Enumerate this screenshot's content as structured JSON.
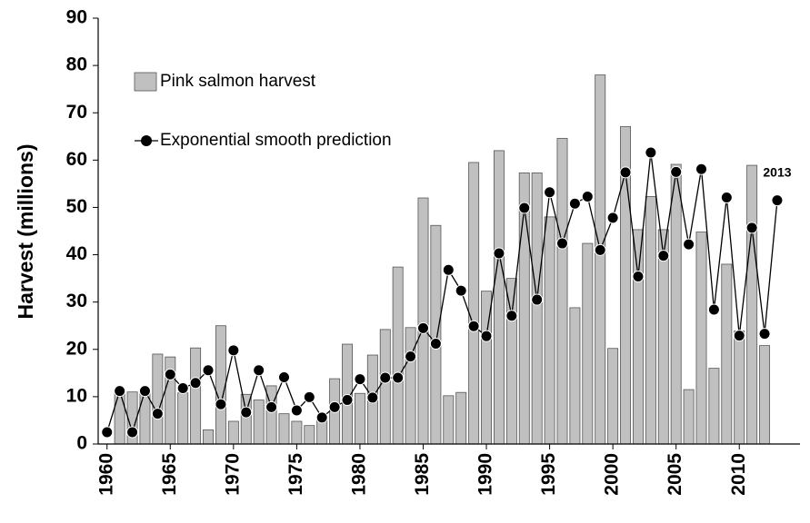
{
  "chart_data": {
    "type": "bar-line",
    "y_label": "Harvest (millions)",
    "annotation": "2013",
    "x": [
      1960,
      1961,
      1962,
      1963,
      1964,
      1965,
      1966,
      1967,
      1968,
      1969,
      1970,
      1971,
      1972,
      1973,
      1974,
      1975,
      1976,
      1977,
      1978,
      1979,
      1980,
      1981,
      1982,
      1983,
      1984,
      1985,
      1986,
      1987,
      1988,
      1989,
      1990,
      1991,
      1992,
      1993,
      1994,
      1995,
      1996,
      1997,
      1998,
      1999,
      2000,
      2001,
      2002,
      2003,
      2004,
      2005,
      2006,
      2007,
      2008,
      2009,
      2010,
      2011,
      2012,
      2013
    ],
    "series": [
      {
        "name": "Pink salmon harvest",
        "type": "bar",
        "color": "#c0c0c0",
        "values": [
          null,
          11,
          11,
          11,
          19,
          18.4,
          10.8,
          20.3,
          3,
          25,
          4.8,
          10.5,
          9.3,
          12.3,
          6.4,
          4.8,
          3.9,
          5.2,
          13.8,
          21.1,
          10.7,
          18.8,
          24.2,
          37.4,
          24.6,
          52,
          46.2,
          10.2,
          10.9,
          59.5,
          32.3,
          62,
          35,
          57.3,
          57.3,
          48,
          64.6,
          28.8,
          42.4,
          78,
          20.2,
          67.1,
          45.3,
          52.3,
          45.3,
          59.1,
          11.5,
          44.8,
          16,
          38,
          23.9,
          58.9,
          20.8,
          null
        ]
      },
      {
        "name": "Exponential smooth prediction",
        "type": "line",
        "color": "#000000",
        "values": [
          2.5,
          11.2,
          2.5,
          11.2,
          6.4,
          14.7,
          11.8,
          12.9,
          15.6,
          8.4,
          19.8,
          6.7,
          15.6,
          7.8,
          14.1,
          7.1,
          9.9,
          5.6,
          7.8,
          9.3,
          13.7,
          9.8,
          14,
          14,
          18.5,
          24.5,
          21.2,
          36.8,
          32.4,
          24.9,
          22.8,
          40.3,
          27.1,
          49.9,
          30.5,
          53.2,
          42.4,
          50.8,
          52.3,
          41,
          47.8,
          57.4,
          35.4,
          61.6,
          39.8,
          57.5,
          42.2,
          58.1,
          28.4,
          52.1,
          22.9,
          45.7,
          23.3,
          51.5
        ]
      }
    ],
    "xlim": [
      1959.3,
      2014.8
    ],
    "xticks": [
      1960,
      1965,
      1970,
      1975,
      1980,
      1985,
      1990,
      1995,
      2000,
      2005,
      2010
    ],
    "ylim": [
      0,
      90
    ],
    "yticks": [
      0,
      10,
      20,
      30,
      40,
      50,
      60,
      70,
      80,
      90
    ],
    "legend": "upper-left"
  }
}
